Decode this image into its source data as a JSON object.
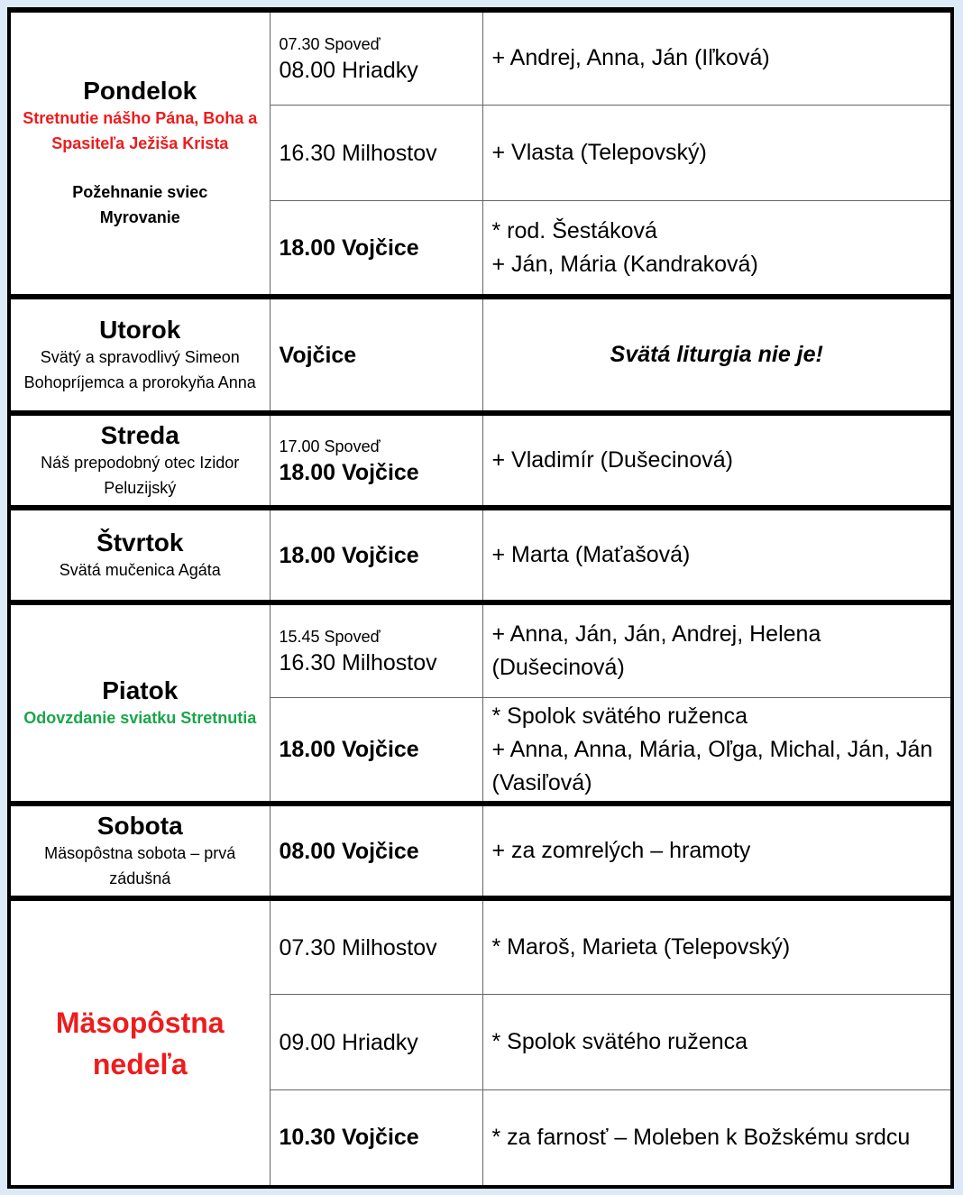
{
  "days": [
    {
      "name": "Pondelok",
      "notes": [
        "Stretnutie nášho Pána, Boha a Spasiteľa Ježiša Krista",
        "Požehnanie sviec",
        "Myrovanie"
      ],
      "services": [
        {
          "confession": "07.30 Spoveď",
          "time": "08.00 Hriadky",
          "intentions": [
            "+ Andrej, Anna, Ján (Iľková)"
          ]
        },
        {
          "time": "16.30 Milhostov",
          "intentions": [
            "+ Vlasta (Telepovský)"
          ]
        },
        {
          "time": "18.00 Vojčice",
          "intentions": [
            "* rod. Šestáková",
            "+ Ján, Mária (Kandraková)"
          ]
        }
      ]
    },
    {
      "name": "Utorok",
      "notes": [
        "Svätý a spravodlivý Simeon Bohopríjemca a prorokyňa Anna"
      ],
      "services": [
        {
          "time": "Vojčice",
          "intentions": [
            "Svätá liturgia nie je!"
          ]
        }
      ]
    },
    {
      "name": "Streda",
      "notes": [
        "Náš prepodobný otec Izidor Peluzijský"
      ],
      "services": [
        {
          "confession": "17.00 Spoveď",
          "time": "18.00 Vojčice",
          "intentions": [
            "+ Vladimír (Dušecinová)"
          ]
        }
      ]
    },
    {
      "name": "Štvrtok",
      "notes": [
        "Svätá mučenica Agáta"
      ],
      "services": [
        {
          "time": "18.00 Vojčice",
          "intentions": [
            "+ Marta (Maťašová)"
          ]
        }
      ]
    },
    {
      "name": "Piatok",
      "notes": [
        "Odovzdanie sviatku Stretnutia"
      ],
      "services": [
        {
          "confession": "15.45 Spoveď",
          "time": "16.30 Milhostov",
          "intentions": [
            "+ Anna, Ján, Ján, Andrej, Helena (Dušecinová)"
          ]
        },
        {
          "time": "18.00 Vojčice",
          "intentions": [
            "* Spolok svätého ruženca",
            "+ Anna, Anna, Mária, Oľga, Michal, Ján, Ján (Vasiľová)"
          ]
        }
      ]
    },
    {
      "name": "Sobota",
      "notes": [
        "Mäsopôstna sobota – prvá zádušná"
      ],
      "services": [
        {
          "time": "08.00 Vojčice",
          "intentions": [
            "+ za zomrelých – hramoty"
          ]
        }
      ]
    },
    {
      "name": "Mäsopôstna nedeľa",
      "notes": [],
      "services": [
        {
          "time": "07.30 Milhostov",
          "intentions": [
            "* Maroš, Marieta (Telepovský)"
          ]
        },
        {
          "time": "09.00 Hriadky",
          "intentions": [
            "* Spolok svätého ruženca"
          ]
        },
        {
          "time": "10.30 Vojčice",
          "intentions": [
            "* za farnosť – Moleben k Božskému srdcu"
          ]
        }
      ]
    }
  ]
}
